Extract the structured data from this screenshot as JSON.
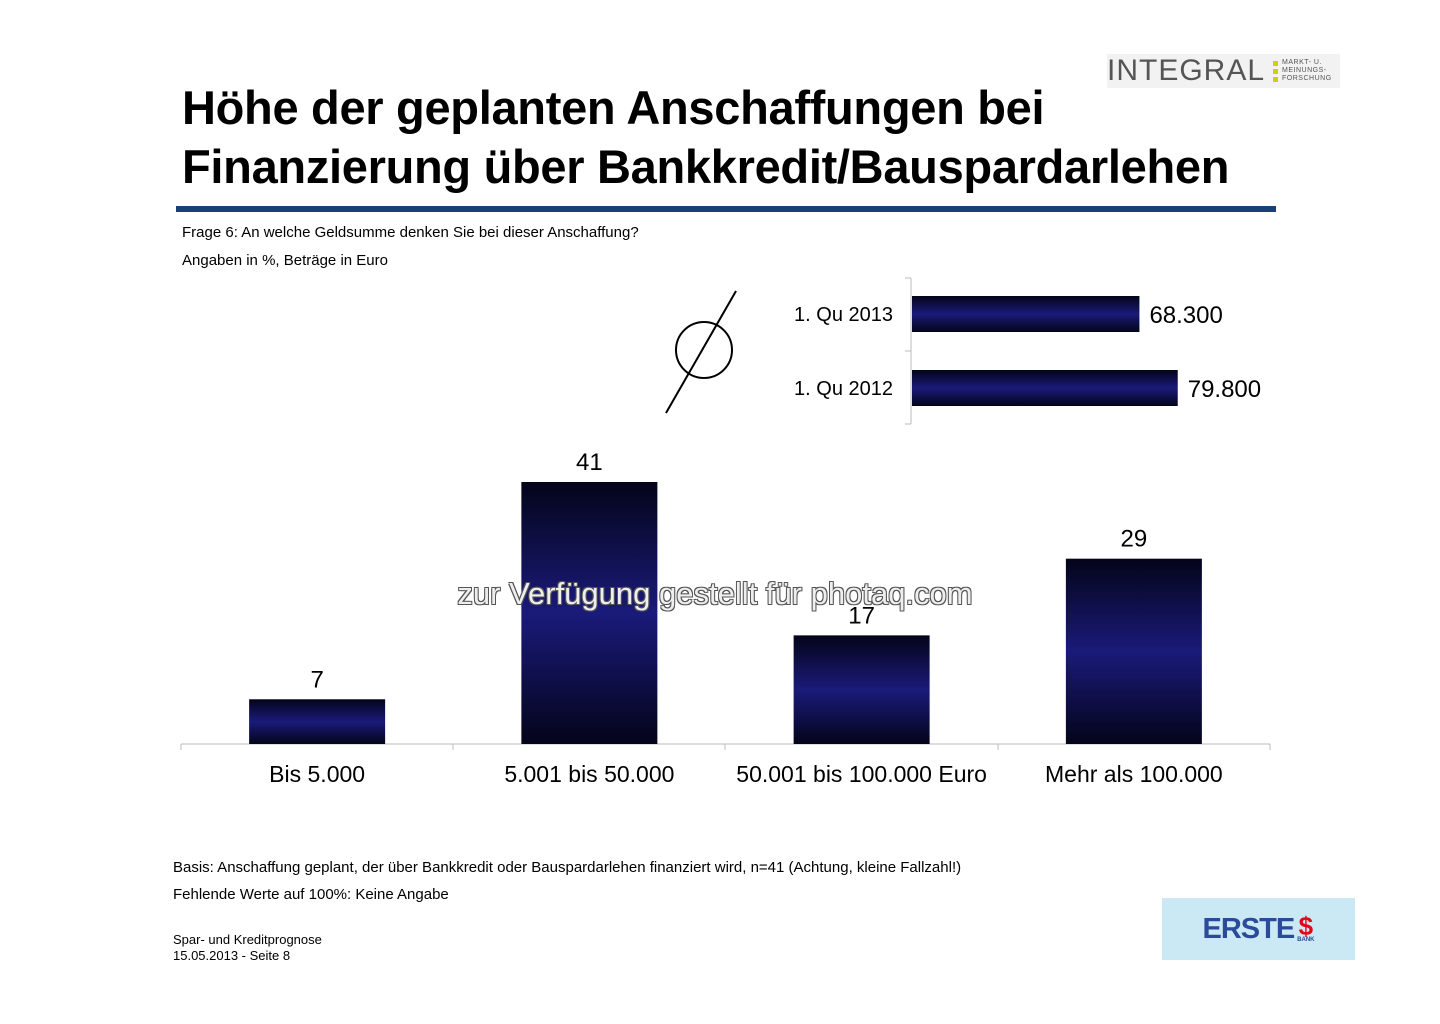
{
  "header": {
    "title_line1": "Höhe der geplanten Anschaffungen bei",
    "title_line2": "Finanzierung über Bankkredit/Bauspardarlehen",
    "question": "Frage 6: An welche Geldsumme denken Sie bei dieser Anschaffung?",
    "units": "Angaben in %, Beträge in Euro"
  },
  "logos": {
    "integral_word": "INTEGRAL",
    "integral_tag1": "MARKT- U.",
    "integral_tag2": "MEINUNGS-",
    "integral_tag3": "FORSCHUNG",
    "erste_word": "ERSTE",
    "erste_sub": "BANK",
    "erste_symbol": "s-logo-icon"
  },
  "colors": {
    "title_rule": "#173f78",
    "bar_light": "#1a1a7a",
    "bar_dark": "#04041a",
    "erste_bg": "#cbe9f4",
    "erste_blue": "#2a4a9a",
    "erste_red": "#e30613",
    "integral_green": "#c8d400"
  },
  "chart_data": [
    {
      "type": "bar",
      "orientation": "horizontal",
      "title": "Ø",
      "categories": [
        "1. Qu 2013",
        "1. Qu 2012"
      ],
      "values": [
        68300,
        79800
      ],
      "value_labels": [
        "68.300",
        "79.800"
      ],
      "xlim": [
        0,
        100000
      ]
    },
    {
      "type": "bar",
      "orientation": "vertical",
      "categories": [
        "Bis 5.000",
        "5.001 bis 50.000",
        "50.001 bis 100.000 Euro",
        "Mehr als 100.000"
      ],
      "values": [
        7,
        41,
        17,
        29
      ],
      "value_labels": [
        "7",
        "41",
        "17",
        "29"
      ],
      "ylim": [
        0,
        41
      ]
    }
  ],
  "watermark": "zur Verfügung gestellt für photaq.com",
  "footer": {
    "basis": "Basis: Anschaffung geplant, der über Bankkredit oder Bauspardarlehen finanziert wird, n=41 (Achtung, kleine Fallzahl!)",
    "missing": "Fehlende Werte auf 100%: Keine Angabe",
    "study": "Spar- und Kreditprognose",
    "page": "15.05.2013 - Seite 8"
  }
}
